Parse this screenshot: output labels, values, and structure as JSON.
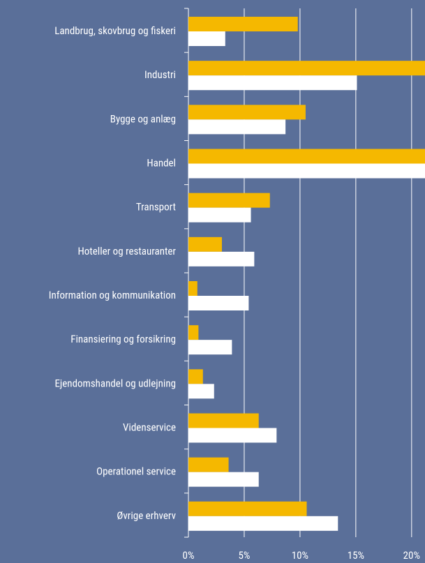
{
  "chart_data": {
    "type": "barh",
    "categories": [
      "Landbrug, skovbrug og fiskeri",
      "Industri",
      "Bygge og anlæg",
      "Handel",
      "Transport",
      "Hoteller og restauranter",
      "Information og kommunikation",
      "Finansiering og forsikring",
      "Ejendomshandel og udlejning",
      "Videnservice",
      "Operationel service",
      "Øvrige erhverv"
    ],
    "series": [
      {
        "color": "#f5b800",
        "values": [
          9.8,
          22,
          10.5,
          23,
          7.3,
          3.0,
          0.8,
          0.9,
          1.3,
          6.3,
          3.6,
          10.6
        ]
      },
      {
        "color": "#ffffff",
        "values": [
          3.3,
          15.1,
          8.7,
          22,
          5.6,
          5.9,
          5.4,
          3.9,
          2.3,
          7.9,
          6.3,
          13.4
        ]
      }
    ],
    "xlim": [
      0,
      21.2
    ],
    "xticks": [
      {
        "value": 0,
        "label": "0%"
      },
      {
        "value": 5,
        "label": "5%"
      },
      {
        "value": 10,
        "label": "10%"
      },
      {
        "value": 15,
        "label": "15%"
      },
      {
        "value": 20,
        "label": "20%"
      }
    ],
    "grid": true
  }
}
